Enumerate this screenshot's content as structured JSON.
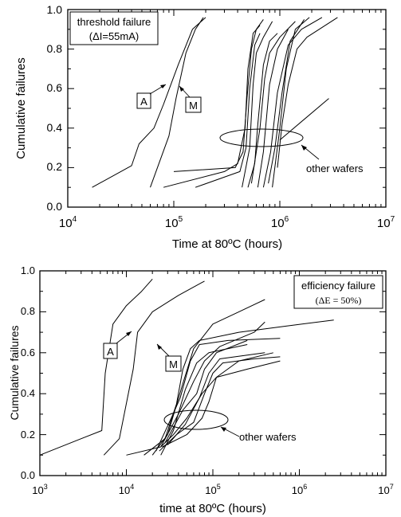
{
  "chart_data": [
    {
      "type": "line",
      "xscale": "log",
      "xlim": [
        10000,
        10000000
      ],
      "ylim": [
        0,
        1
      ],
      "xlabel": "Time at 80ºC (hours)",
      "ylabel": "Cumulative failures",
      "xtick_labels": [
        {
          "base": "10",
          "exp": "4"
        },
        {
          "base": "10",
          "exp": "5"
        },
        {
          "base": "10",
          "exp": "6"
        },
        {
          "base": "10",
          "exp": "7"
        }
      ],
      "ytick_labels": [
        "0.0",
        "0.2",
        "0.4",
        "0.6",
        "0.8",
        "1.0"
      ],
      "legend_box": {
        "line1": "threshold failure",
        "line2": "(ΔI=55mA)"
      },
      "labels": {
        "A": "A",
        "M": "M",
        "other": "other wafers"
      },
      "series": [
        {
          "name": "A",
          "points": [
            [
              17000,
              0.1
            ],
            [
              40000,
              0.21
            ],
            [
              47000,
              0.32
            ],
            [
              65000,
              0.4
            ],
            [
              80000,
              0.52
            ],
            [
              110000,
              0.72
            ],
            [
              150000,
              0.9
            ],
            [
              200000,
              0.96
            ]
          ]
        },
        {
          "name": "M",
          "points": [
            [
              60000,
              0.1
            ],
            [
              90000,
              0.36
            ],
            [
              105000,
              0.55
            ],
            [
              130000,
              0.78
            ],
            [
              160000,
              0.9
            ],
            [
              190000,
              0.96
            ]
          ]
        },
        {
          "points": [
            [
              80000,
              0.1
            ],
            [
              300000,
              0.18
            ],
            [
              400000,
              0.22
            ],
            [
              470000,
              0.4
            ],
            [
              500000,
              0.7
            ],
            [
              560000,
              0.88
            ],
            [
              650000,
              0.92
            ]
          ]
        },
        {
          "points": [
            [
              100000,
              0.18
            ],
            [
              380000,
              0.2
            ],
            [
              450000,
              0.28
            ],
            [
              490000,
              0.55
            ],
            [
              540000,
              0.8
            ],
            [
              600000,
              0.9
            ],
            [
              700000,
              0.95
            ]
          ]
        },
        {
          "points": [
            [
              160000,
              0.1
            ],
            [
              420000,
              0.18
            ],
            [
              480000,
              0.3
            ],
            [
              520000,
              0.6
            ],
            [
              580000,
              0.82
            ],
            [
              650000,
              0.88
            ]
          ]
        },
        {
          "points": [
            [
              440000,
              0.1
            ],
            [
              520000,
              0.3
            ],
            [
              560000,
              0.62
            ],
            [
              600000,
              0.78
            ],
            [
              700000,
              0.86
            ],
            [
              850000,
              0.94
            ]
          ]
        },
        {
          "points": [
            [
              500000,
              0.1
            ],
            [
              580000,
              0.22
            ],
            [
              620000,
              0.42
            ],
            [
              700000,
              0.72
            ],
            [
              800000,
              0.84
            ],
            [
              950000,
              0.88
            ]
          ]
        },
        {
          "points": [
            [
              540000,
              0.12
            ],
            [
              650000,
              0.4
            ],
            [
              720000,
              0.65
            ],
            [
              800000,
              0.78
            ],
            [
              1000000,
              0.86
            ],
            [
              1400000,
              0.94
            ]
          ]
        },
        {
          "points": [
            [
              620000,
              0.1
            ],
            [
              700000,
              0.28
            ],
            [
              800000,
              0.62
            ],
            [
              950000,
              0.8
            ],
            [
              1200000,
              0.9
            ]
          ]
        },
        {
          "points": [
            [
              700000,
              0.1
            ],
            [
              820000,
              0.28
            ],
            [
              950000,
              0.58
            ],
            [
              1200000,
              0.82
            ],
            [
              1600000,
              0.9
            ],
            [
              2500000,
              0.96
            ]
          ]
        },
        {
          "points": [
            [
              780000,
              0.12
            ],
            [
              900000,
              0.3
            ],
            [
              1050000,
              0.58
            ],
            [
              1250000,
              0.84
            ],
            [
              1700000,
              0.95
            ]
          ]
        },
        {
          "points": [
            [
              850000,
              0.1
            ],
            [
              1000000,
              0.4
            ],
            [
              1150000,
              0.7
            ],
            [
              1400000,
              0.9
            ],
            [
              1900000,
              0.96
            ]
          ]
        },
        {
          "points": [
            [
              950000,
              0.2
            ],
            [
              1050000,
              0.42
            ],
            [
              1200000,
              0.62
            ],
            [
              1450000,
              0.8
            ],
            [
              1800000,
              0.86
            ],
            [
              3500000,
              0.96
            ]
          ]
        },
        {
          "points": [
            [
              1000000,
              0.34
            ],
            [
              2900000,
              0.55
            ]
          ]
        }
      ]
    },
    {
      "type": "line",
      "xscale": "log",
      "xlim": [
        1000,
        10000000
      ],
      "ylim": [
        0,
        1
      ],
      "xlabel": "time at 80ºC (hours)",
      "ylabel": "Cumulative failures",
      "xtick_labels": [
        {
          "base": "10",
          "exp": "3"
        },
        {
          "base": "10",
          "exp": "4"
        },
        {
          "base": "10",
          "exp": "5"
        },
        {
          "base": "10",
          "exp": "6"
        },
        {
          "base": "10",
          "exp": "7"
        }
      ],
      "ytick_labels": [
        "0.0",
        "0.2",
        "0.4",
        "0.6",
        "0.8",
        "1.0"
      ],
      "legend_box": {
        "line1": "efficiency failure",
        "line2": "(ΔE = 50%)"
      },
      "labels": {
        "A": "A",
        "M": "M",
        "other": "other wafers"
      },
      "series": [
        {
          "name": "A",
          "points": [
            [
              1000,
              0.1
            ],
            [
              3000,
              0.18
            ],
            [
              5200,
              0.22
            ],
            [
              5700,
              0.5
            ],
            [
              7000,
              0.74
            ],
            [
              10000,
              0.83
            ],
            [
              15000,
              0.9
            ],
            [
              20000,
              0.96
            ]
          ]
        },
        {
          "name": "M",
          "points": [
            [
              5500,
              0.1
            ],
            [
              8300,
              0.18
            ],
            [
              12000,
              0.52
            ],
            [
              13500,
              0.7
            ],
            [
              20000,
              0.8
            ],
            [
              40000,
              0.88
            ],
            [
              80000,
              0.95
            ]
          ]
        },
        {
          "points": [
            [
              16000,
              0.1
            ],
            [
              28000,
              0.18
            ],
            [
              38000,
              0.35
            ],
            [
              45000,
              0.52
            ],
            [
              55000,
              0.62
            ],
            [
              70000,
              0.66
            ],
            [
              200000,
              0.7
            ],
            [
              700000,
              0.73
            ],
            [
              2500000,
              0.76
            ]
          ]
        },
        {
          "points": [
            [
              20000,
              0.1
            ],
            [
              30000,
              0.2
            ],
            [
              45000,
              0.45
            ],
            [
              60000,
              0.62
            ],
            [
              100000,
              0.74
            ],
            [
              200000,
              0.8
            ],
            [
              400000,
              0.86
            ]
          ]
        },
        {
          "points": [
            [
              22000,
              0.12
            ],
            [
              33000,
              0.28
            ],
            [
              42000,
              0.38
            ],
            [
              55000,
              0.56
            ],
            [
              70000,
              0.64
            ],
            [
              150000,
              0.66
            ],
            [
              600000,
              0.67
            ]
          ]
        },
        {
          "points": [
            [
              25000,
              0.1
            ],
            [
              35000,
              0.22
            ],
            [
              48000,
              0.42
            ],
            [
              65000,
              0.55
            ],
            [
              90000,
              0.6
            ],
            [
              250000,
              0.64
            ]
          ]
        },
        {
          "points": [
            [
              25000,
              0.14
            ],
            [
              40000,
              0.3
            ],
            [
              60000,
              0.46
            ],
            [
              80000,
              0.56
            ],
            [
              120000,
              0.63
            ],
            [
              300000,
              0.7
            ],
            [
              400000,
              0.75
            ]
          ]
        },
        {
          "points": [
            [
              28000,
              0.16
            ],
            [
              45000,
              0.32
            ],
            [
              65000,
              0.4
            ],
            [
              80000,
              0.52
            ],
            [
              110000,
              0.6
            ],
            [
              250000,
              0.66
            ]
          ]
        },
        {
          "points": [
            [
              30000,
              0.15
            ],
            [
              48000,
              0.25
            ],
            [
              70000,
              0.38
            ],
            [
              90000,
              0.5
            ],
            [
              120000,
              0.57
            ],
            [
              400000,
              0.6
            ]
          ]
        },
        {
          "points": [
            [
              24000,
              0.12
            ],
            [
              38000,
              0.2
            ],
            [
              60000,
              0.26
            ],
            [
              80000,
              0.4
            ],
            [
              100000,
              0.5
            ],
            [
              130000,
              0.55
            ],
            [
              300000,
              0.57
            ],
            [
              600000,
              0.58
            ]
          ]
        },
        {
          "points": [
            [
              26000,
              0.14
            ],
            [
              50000,
              0.2
            ],
            [
              75000,
              0.28
            ],
            [
              90000,
              0.36
            ],
            [
              110000,
              0.48
            ],
            [
              250000,
              0.52
            ],
            [
              600000,
              0.56
            ]
          ]
        },
        {
          "points": [
            [
              10000,
              0.1
            ],
            [
              25000,
              0.14
            ],
            [
              35000,
              0.2
            ],
            [
              50000,
              0.28
            ],
            [
              75000,
              0.4
            ],
            [
              110000,
              0.48
            ],
            [
              200000,
              0.56
            ],
            [
              500000,
              0.6
            ]
          ]
        }
      ]
    }
  ]
}
